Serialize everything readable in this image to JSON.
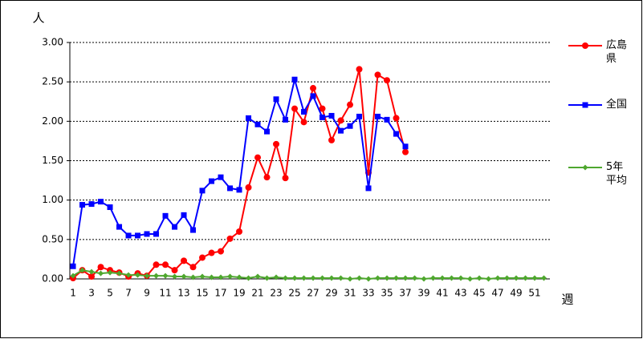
{
  "chart_data": {
    "type": "line",
    "y_label": "人",
    "x_label": "週",
    "categories": [
      "1",
      null,
      "3",
      null,
      "5",
      null,
      "7",
      null,
      "9",
      null,
      "11",
      null,
      "13",
      null,
      "15",
      null,
      "17",
      null,
      "19",
      null,
      "21",
      null,
      "23",
      null,
      "25",
      null,
      "27",
      null,
      "29",
      null,
      "31",
      null,
      "33",
      null,
      "35",
      null,
      "37",
      null,
      "39",
      null,
      "41",
      null,
      "43",
      null,
      "45",
      null,
      "47",
      null,
      "49",
      null,
      "51",
      null
    ],
    "series": [
      {
        "name": "広島県",
        "color": "#ff0000",
        "marker": "circle",
        "values": [
          0.01,
          0.11,
          0.03,
          0.15,
          0.11,
          0.08,
          0.03,
          0.07,
          0.04,
          0.18,
          0.18,
          0.11,
          0.23,
          0.15,
          0.27,
          0.33,
          0.35,
          0.51,
          0.6,
          1.16,
          1.54,
          1.29,
          1.71,
          1.28,
          2.16,
          1.99,
          2.42,
          2.16,
          1.76,
          2.01,
          2.21,
          2.66,
          1.35,
          2.59,
          2.52,
          2.04,
          1.61,
          null,
          null,
          null,
          null,
          null,
          null,
          null,
          null,
          null,
          null,
          null,
          null,
          null,
          null,
          null
        ]
      },
      {
        "name": "全国",
        "color": "#0000ff",
        "marker": "square",
        "values": [
          0.16,
          0.94,
          0.95,
          0.98,
          0.91,
          0.66,
          0.55,
          0.55,
          0.57,
          0.57,
          0.8,
          0.66,
          0.81,
          0.62,
          1.12,
          1.24,
          1.29,
          1.15,
          1.13,
          2.04,
          1.96,
          1.87,
          2.28,
          2.02,
          2.53,
          2.12,
          2.32,
          2.05,
          2.07,
          1.88,
          1.94,
          2.06,
          1.15,
          2.06,
          2.02,
          1.84,
          1.68,
          null,
          null,
          null,
          null,
          null,
          null,
          null,
          null,
          null,
          null,
          null,
          null,
          null,
          null,
          null
        ]
      },
      {
        "name": "5年平均",
        "color": "#4ea72e",
        "marker": "diamond",
        "values": [
          0.04,
          0.11,
          0.09,
          0.07,
          0.08,
          0.07,
          0.05,
          0.05,
          0.04,
          0.04,
          0.04,
          0.03,
          0.03,
          0.02,
          0.03,
          0.02,
          0.02,
          0.03,
          0.02,
          0.01,
          0.03,
          0.01,
          0.02,
          0.01,
          0.01,
          0.01,
          0.01,
          0.01,
          0.01,
          0.01,
          0.0,
          0.01,
          0.0,
          0.01,
          0.01,
          0.01,
          0.01,
          0.01,
          0.0,
          0.01,
          0.01,
          0.01,
          0.01,
          0.0,
          0.01,
          0.0,
          0.01,
          0.01,
          0.01,
          0.01,
          0.01,
          0.01
        ]
      }
    ],
    "ylim": [
      0,
      3
    ],
    "yticks": [
      {
        "value": 0,
        "label": "0.00"
      },
      {
        "value": 0.5,
        "label": "0.50"
      },
      {
        "value": 1,
        "label": "1.00"
      },
      {
        "value": 1.5,
        "label": "1.50"
      },
      {
        "value": 2,
        "label": "2.00"
      },
      {
        "value": 2.5,
        "label": "2.50"
      },
      {
        "value": 3,
        "label": "3.00"
      }
    ],
    "grid": true,
    "legend": "right"
  }
}
